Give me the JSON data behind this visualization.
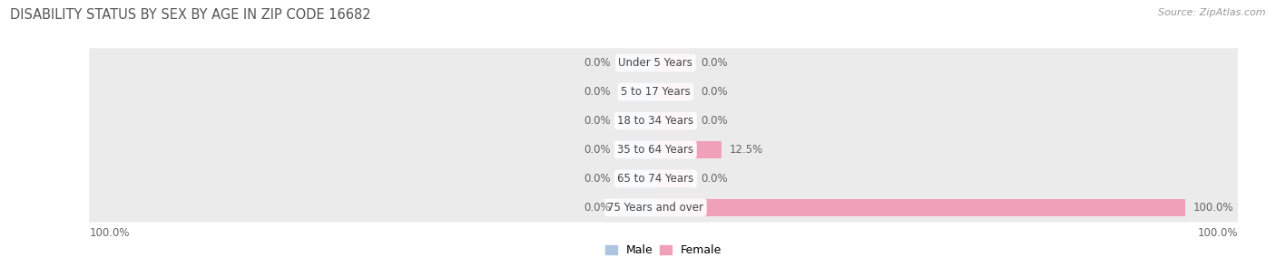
{
  "title": "DISABILITY STATUS BY SEX BY AGE IN ZIP CODE 16682",
  "source": "Source: ZipAtlas.com",
  "categories": [
    "Under 5 Years",
    "5 to 17 Years",
    "18 to 34 Years",
    "35 to 64 Years",
    "65 to 74 Years",
    "75 Years and over"
  ],
  "male_values": [
    0.0,
    0.0,
    0.0,
    0.0,
    0.0,
    0.0
  ],
  "female_values": [
    0.0,
    0.0,
    0.0,
    12.5,
    0.0,
    100.0
  ],
  "male_color": "#adc6e0",
  "female_color": "#f0a0b8",
  "row_bg_color": "#ebebeb",
  "max_value": 100.0,
  "min_bar_stub": 7.0,
  "title_fontsize": 10.5,
  "source_fontsize": 8,
  "label_fontsize": 8.5,
  "category_fontsize": 8.5,
  "legend_fontsize": 9
}
